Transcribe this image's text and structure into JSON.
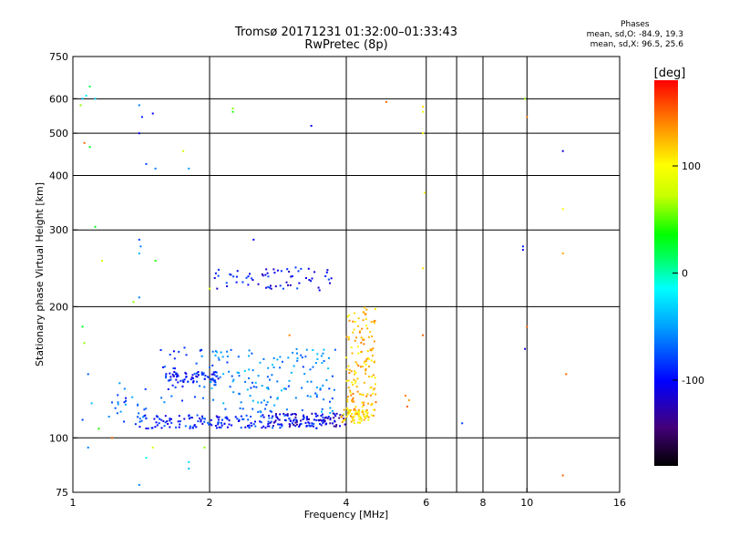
{
  "header": {
    "title": "Tromsø 20171231 01:32:00–01:33:43",
    "subtitle": "RwPretec (8p)"
  },
  "phases_box": {
    "heading": "Phases",
    "line_o": "mean, sd,O:  -84.9, 19.3",
    "line_x": "mean, sd,X:  96.5, 25.6"
  },
  "colorbar": {
    "label": "[deg]",
    "ticks": [
      {
        "value": 100,
        "label": "100"
      },
      {
        "value": 0,
        "label": "0"
      },
      {
        "value": -100,
        "label": "-100"
      }
    ],
    "range": [
      -180,
      180
    ]
  },
  "chart_data": {
    "type": "scatter",
    "title": "Tromsø 20171231 01:32:00–01:33:43",
    "subtitle": "RwPretec (8p)",
    "xlabel": "Frequency [MHz]",
    "ylabel": "Stationary phase Virtual Height [km]",
    "x_scale": "log",
    "y_scale": "log",
    "xlim": [
      1,
      16
    ],
    "ylim": [
      75,
      750
    ],
    "x_ticks": [
      1,
      2,
      4,
      6,
      8,
      10,
      16
    ],
    "x_tick_labels": [
      "1",
      "2",
      "4",
      "6",
      "8",
      "10",
      "16"
    ],
    "x_gridlines": [
      2,
      4,
      6,
      7,
      8,
      10
    ],
    "y_ticks": [
      75,
      100,
      200,
      300,
      400,
      500,
      600,
      750
    ],
    "y_tick_labels": [
      "75",
      "100",
      "200",
      "300",
      "400",
      "500",
      "600",
      "750"
    ],
    "y_gridlines": [
      100,
      200,
      300,
      400,
      500,
      600
    ],
    "grid": true,
    "color_by": "phase [deg]",
    "points": [
      [
        1.05,
        600,
        -40
      ],
      [
        1.07,
        610,
        -20
      ],
      [
        1.09,
        640,
        20
      ],
      [
        1.12,
        600,
        -30
      ],
      [
        1.04,
        580,
        60
      ],
      [
        1.06,
        475,
        150
      ],
      [
        1.09,
        465,
        30
      ],
      [
        1.4,
        580,
        -60
      ],
      [
        1.42,
        545,
        -90
      ],
      [
        1.5,
        555,
        -100
      ],
      [
        1.4,
        500,
        -100
      ],
      [
        1.45,
        425,
        -80
      ],
      [
        1.52,
        415,
        -60
      ],
      [
        1.75,
        455,
        70
      ],
      [
        1.8,
        415,
        -50
      ],
      [
        2.25,
        570,
        60
      ],
      [
        2.25,
        560,
        40
      ],
      [
        3.35,
        520,
        -100
      ],
      [
        4.9,
        590,
        150
      ],
      [
        5.9,
        575,
        110
      ],
      [
        5.9,
        560,
        90
      ],
      [
        5.9,
        500,
        100
      ],
      [
        5.95,
        365,
        100
      ],
      [
        9.9,
        600,
        60
      ],
      [
        10.0,
        545,
        140
      ],
      [
        12.0,
        455,
        -110
      ],
      [
        1.12,
        305,
        30
      ],
      [
        1.4,
        285,
        -80
      ],
      [
        1.41,
        275,
        -60
      ],
      [
        1.4,
        265,
        -40
      ],
      [
        1.52,
        255,
        40
      ],
      [
        1.16,
        255,
        80
      ],
      [
        2.5,
        285,
        -100
      ],
      [
        5.9,
        245,
        110
      ],
      [
        9.8,
        275,
        -90
      ],
      [
        9.8,
        270,
        -110
      ],
      [
        12.0,
        335,
        100
      ],
      [
        12.0,
        265,
        130
      ],
      [
        1.36,
        205,
        60
      ],
      [
        1.4,
        210,
        -60
      ],
      [
        2.0,
        220,
        80
      ],
      [
        1.05,
        180,
        30
      ],
      [
        1.06,
        165,
        60
      ],
      [
        1.08,
        140,
        -70
      ],
      [
        1.1,
        120,
        -40
      ],
      [
        1.05,
        110,
        -80
      ],
      [
        1.08,
        95,
        -60
      ],
      [
        1.14,
        105,
        40
      ],
      [
        1.22,
        100,
        150
      ],
      [
        1.45,
        90,
        -10
      ],
      [
        1.4,
        78,
        -60
      ],
      [
        1.5,
        95,
        80
      ],
      [
        1.8,
        85,
        -40
      ],
      [
        1.8,
        88,
        -30
      ],
      [
        1.95,
        95,
        60
      ],
      [
        3.0,
        172,
        140
      ],
      [
        5.9,
        172,
        150
      ],
      [
        7.2,
        108,
        -80
      ],
      [
        10.0,
        180,
        150
      ],
      [
        9.9,
        160,
        -110
      ],
      [
        12.2,
        140,
        150
      ],
      [
        12.0,
        82,
        150
      ],
      [
        5.4,
        125,
        140
      ],
      [
        5.45,
        118,
        150
      ],
      [
        5.5,
        122,
        130
      ]
    ],
    "clusters": [
      {
        "x_range": [
          1.4,
          3.7
        ],
        "y_range": [
          105,
          113
        ],
        "phase": -90,
        "count": 180
      },
      {
        "x_range": [
          1.6,
          2.1
        ],
        "y_range": [
          134,
          142
        ],
        "phase": -95,
        "count": 70
      },
      {
        "x_range": [
          2.0,
          3.8
        ],
        "y_range": [
          114,
          160
        ],
        "phase": -60,
        "count": 150
      },
      {
        "x_range": [
          2.7,
          4.0
        ],
        "y_range": [
          106,
          114
        ],
        "phase": -115,
        "count": 80
      },
      {
        "x_range": [
          2.05,
          3.75
        ],
        "y_range": [
          218,
          246
        ],
        "phase": -100,
        "count": 65
      },
      {
        "x_range": [
          3.9,
          4.6
        ],
        "y_range": [
          108,
          116
        ],
        "phase": 110,
        "count": 70
      },
      {
        "x_range": [
          4.0,
          4.65
        ],
        "y_range": [
          115,
          200
        ],
        "phase": 120,
        "count": 140
      },
      {
        "x_range": [
          1.55,
          1.95
        ],
        "y_range": [
          120,
          165
        ],
        "phase": -80,
        "count": 30
      },
      {
        "x_range": [
          1.2,
          1.45
        ],
        "y_range": [
          106,
          135
        ],
        "phase": -70,
        "count": 25
      }
    ]
  }
}
